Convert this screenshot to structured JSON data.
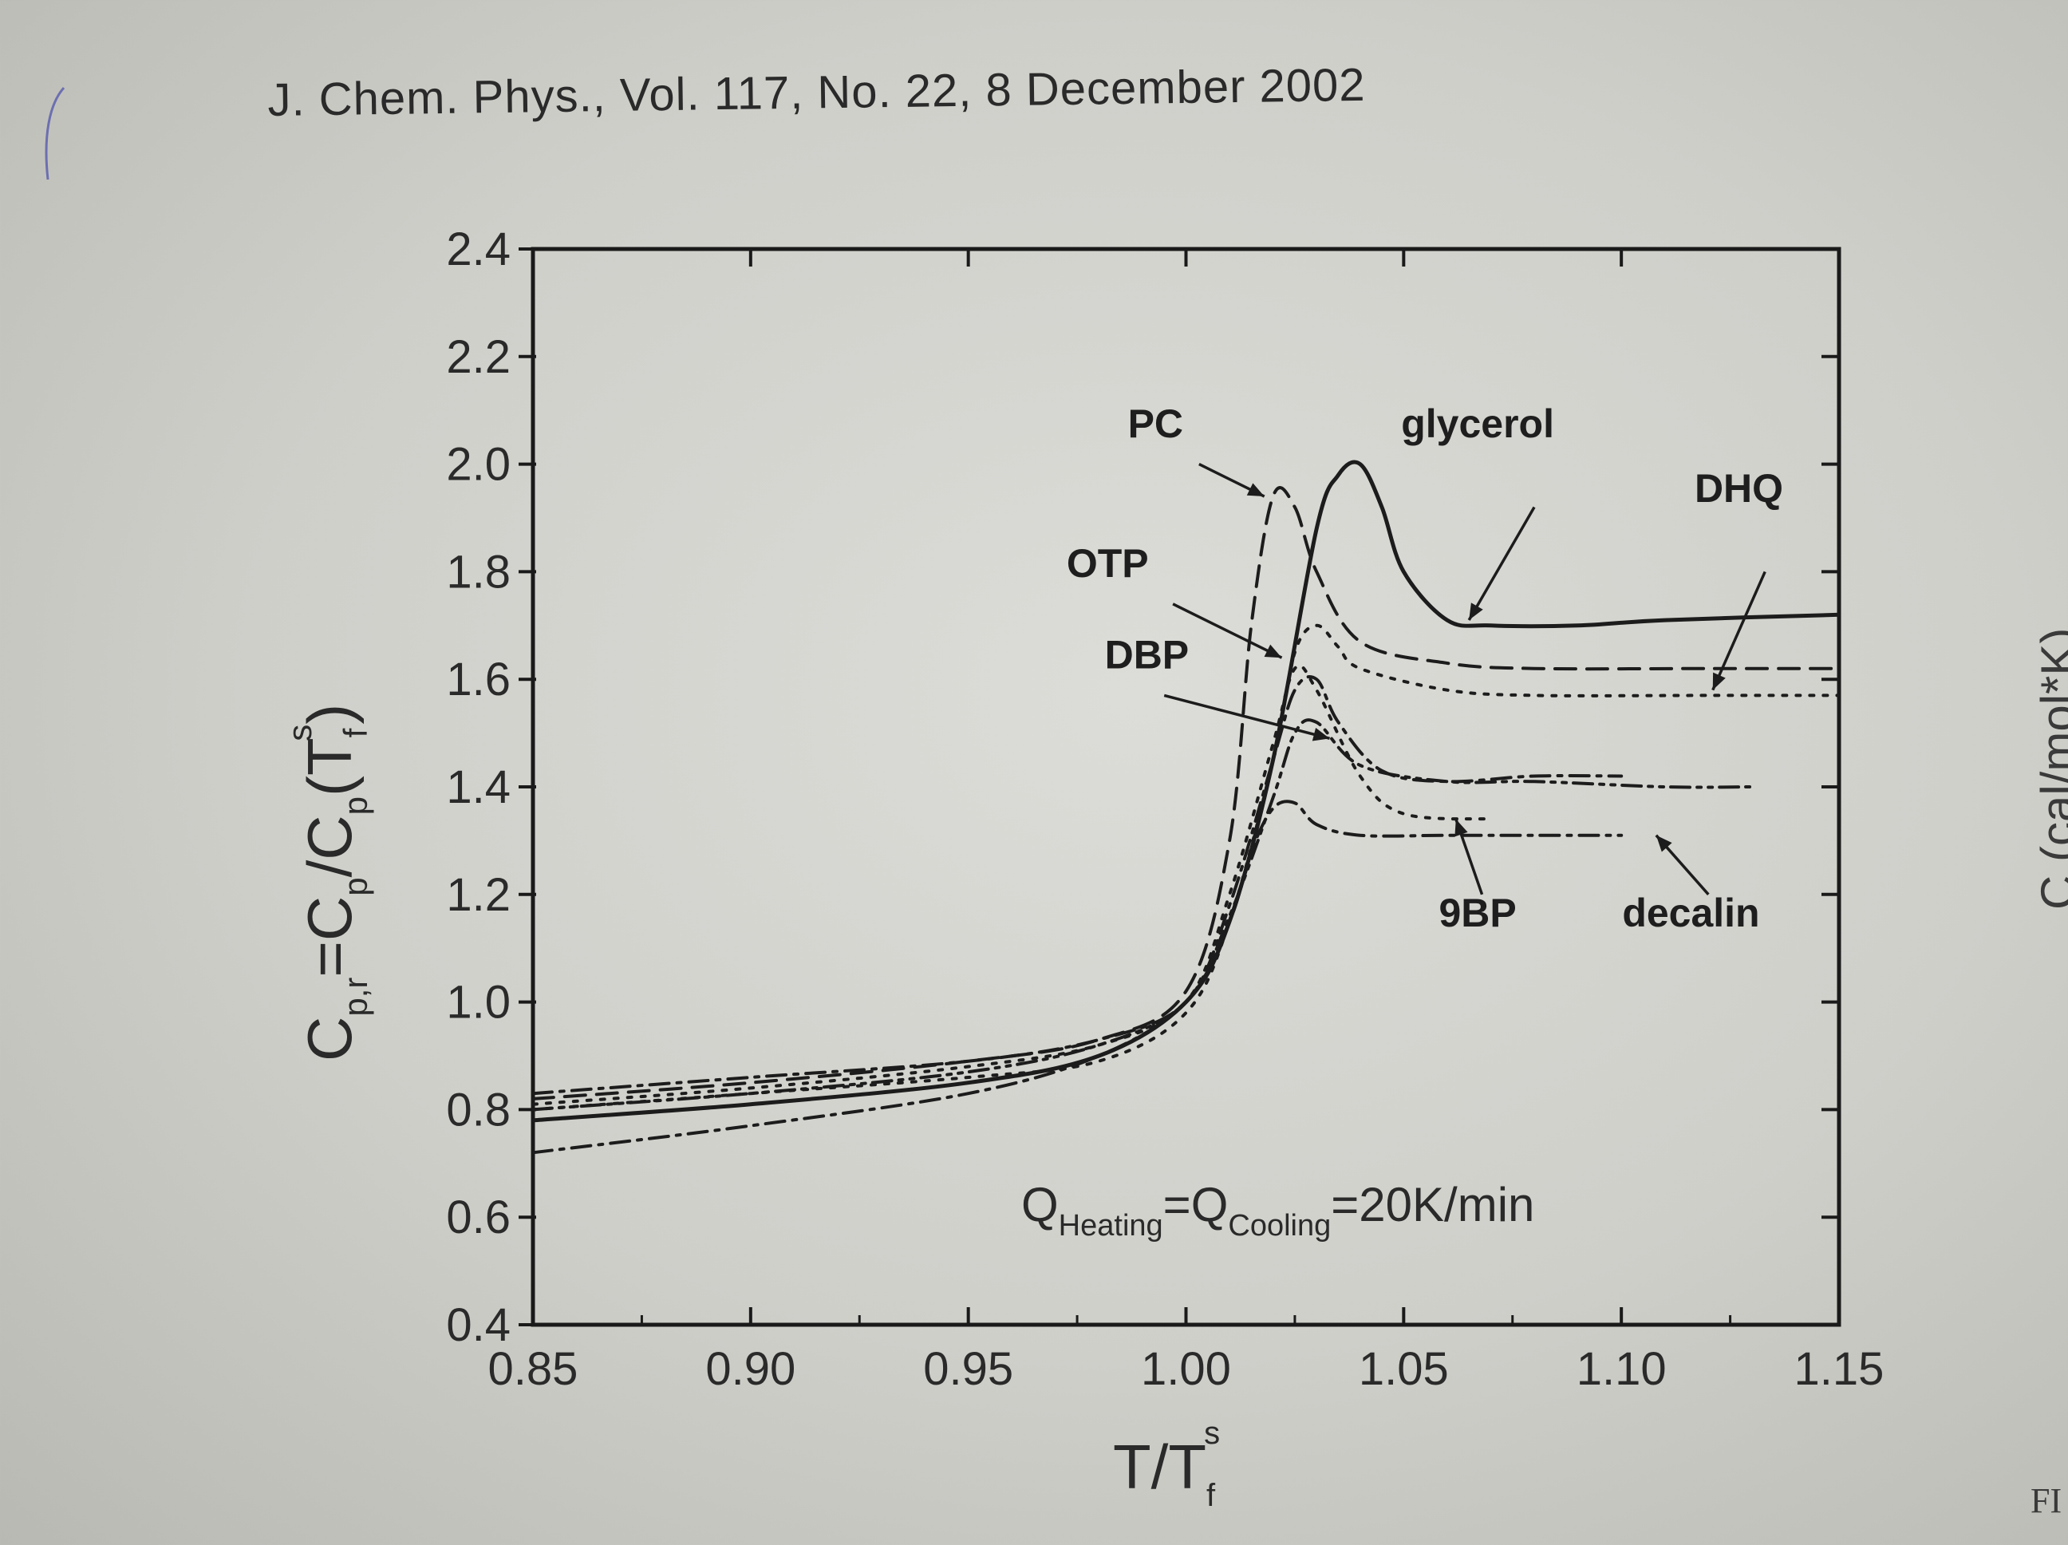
{
  "header": {
    "citation": "J. Chem. Phys., Vol. 117, No. 22, 8 December 2002"
  },
  "edge_text": {
    "right_rotated": "C (cal/mol*K)",
    "corner": "FI"
  },
  "chart_data": {
    "type": "line",
    "xlabel": {
      "main": "T/T",
      "sub": "f",
      "sup": "s"
    },
    "ylabel": {
      "main": "C",
      "sub1": "p,r",
      "mid": "=C",
      "sub2": "p",
      "mid2": "/C",
      "sub3": "p",
      "tail": "(T",
      "sub4": "f",
      "sup": "s",
      "close": ")"
    },
    "xlim": [
      0.85,
      1.15
    ],
    "ylim": [
      0.4,
      2.4
    ],
    "xticks": [
      "0.85",
      "0.90",
      "0.95",
      "1.00",
      "1.05",
      "1.10",
      "1.15"
    ],
    "yticks": [
      "0.4",
      "0.6",
      "0.8",
      "1.0",
      "1.2",
      "1.4",
      "1.6",
      "1.8",
      "2.0",
      "2.2",
      "2.4"
    ],
    "annotation": {
      "q1": "Q",
      "sub1": "Heating",
      "eq1": "=Q",
      "sub2": "Cooling",
      "eq2": "=20K/min"
    },
    "grid": false,
    "series": [
      {
        "name": "glycerol",
        "style": "solid",
        "x": [
          0.85,
          0.9,
          0.95,
          0.98,
          1.0,
          1.01,
          1.02,
          1.03,
          1.035,
          1.04,
          1.045,
          1.05,
          1.06,
          1.07,
          1.09,
          1.11,
          1.15
        ],
        "y": [
          0.78,
          0.81,
          0.85,
          0.9,
          1.0,
          1.15,
          1.45,
          1.88,
          1.98,
          2.0,
          1.92,
          1.8,
          1.71,
          1.7,
          1.7,
          1.71,
          1.72
        ]
      },
      {
        "name": "PC",
        "style": "dashed",
        "x": [
          0.85,
          0.9,
          0.95,
          0.98,
          1.0,
          1.01,
          1.015,
          1.02,
          1.025,
          1.03,
          1.04,
          1.06,
          1.08,
          1.12,
          1.15
        ],
        "y": [
          0.82,
          0.85,
          0.89,
          0.93,
          1.02,
          1.3,
          1.7,
          1.94,
          1.92,
          1.8,
          1.67,
          1.63,
          1.62,
          1.62,
          1.62
        ]
      },
      {
        "name": "DHQ",
        "style": "dotted",
        "x": [
          0.85,
          0.9,
          0.95,
          0.98,
          1.0,
          1.01,
          1.02,
          1.025,
          1.03,
          1.035,
          1.04,
          1.06,
          1.08,
          1.12,
          1.15
        ],
        "y": [
          0.8,
          0.83,
          0.86,
          0.89,
          0.98,
          1.15,
          1.45,
          1.65,
          1.7,
          1.66,
          1.62,
          1.58,
          1.57,
          1.57,
          1.57
        ]
      },
      {
        "name": "OTP",
        "style": "dotted",
        "x": [
          0.85,
          0.9,
          0.95,
          0.98,
          1.0,
          1.01,
          1.02,
          1.025,
          1.03,
          1.04,
          1.05,
          1.07
        ],
        "y": [
          0.81,
          0.84,
          0.88,
          0.92,
          1.0,
          1.2,
          1.48,
          1.62,
          1.58,
          1.42,
          1.35,
          1.34
        ]
      },
      {
        "name": "DBP",
        "style": "dashdot",
        "x": [
          0.85,
          0.9,
          0.95,
          0.98,
          1.0,
          1.01,
          1.02,
          1.025,
          1.03,
          1.035,
          1.045,
          1.06,
          1.08,
          1.1
        ],
        "y": [
          0.83,
          0.86,
          0.89,
          0.93,
          1.0,
          1.18,
          1.45,
          1.58,
          1.6,
          1.52,
          1.43,
          1.41,
          1.42,
          1.42
        ]
      },
      {
        "name": "9BP",
        "style": "dashdotdot",
        "x": [
          0.85,
          0.9,
          0.95,
          0.98,
          1.0,
          1.01,
          1.02,
          1.025,
          1.03,
          1.04,
          1.06,
          1.08,
          1.11,
          1.13
        ],
        "y": [
          0.8,
          0.83,
          0.87,
          0.92,
          1.0,
          1.16,
          1.38,
          1.5,
          1.52,
          1.44,
          1.41,
          1.41,
          1.4,
          1.4
        ]
      },
      {
        "name": "decalin",
        "style": "dashdot",
        "x": [
          0.85,
          0.9,
          0.95,
          0.98,
          1.0,
          1.01,
          1.015,
          1.02,
          1.025,
          1.03,
          1.04,
          1.06,
          1.08,
          1.1
        ],
        "y": [
          0.72,
          0.77,
          0.83,
          0.9,
          1.0,
          1.15,
          1.28,
          1.36,
          1.37,
          1.33,
          1.31,
          1.31,
          1.31,
          1.31
        ]
      }
    ],
    "labels": [
      {
        "text": "PC",
        "x": 0.993,
        "y": 2.05,
        "arrow": [
          [
            1.003,
            2.0
          ],
          [
            1.018,
            1.94
          ]
        ]
      },
      {
        "text": "glycerol",
        "x": 1.067,
        "y": 2.05,
        "arrow": [
          [
            1.08,
            1.92
          ],
          [
            1.065,
            1.71
          ]
        ]
      },
      {
        "text": "DHQ",
        "x": 1.127,
        "y": 1.93,
        "arrow": [
          [
            1.133,
            1.8
          ],
          [
            1.121,
            1.58
          ]
        ]
      },
      {
        "text": "OTP",
        "x": 0.982,
        "y": 1.79,
        "arrow": [
          [
            0.997,
            1.74
          ],
          [
            1.022,
            1.64
          ]
        ]
      },
      {
        "text": "DBP",
        "x": 0.991,
        "y": 1.62,
        "arrow": [
          [
            0.995,
            1.57
          ],
          [
            1.033,
            1.49
          ]
        ]
      },
      {
        "text": "9BP",
        "x": 1.067,
        "y": 1.14,
        "arrow": [
          [
            1.068,
            1.2
          ],
          [
            1.062,
            1.34
          ]
        ]
      },
      {
        "text": "decalin",
        "x": 1.116,
        "y": 1.14,
        "arrow": [
          [
            1.12,
            1.2
          ],
          [
            1.108,
            1.31
          ]
        ]
      }
    ]
  }
}
